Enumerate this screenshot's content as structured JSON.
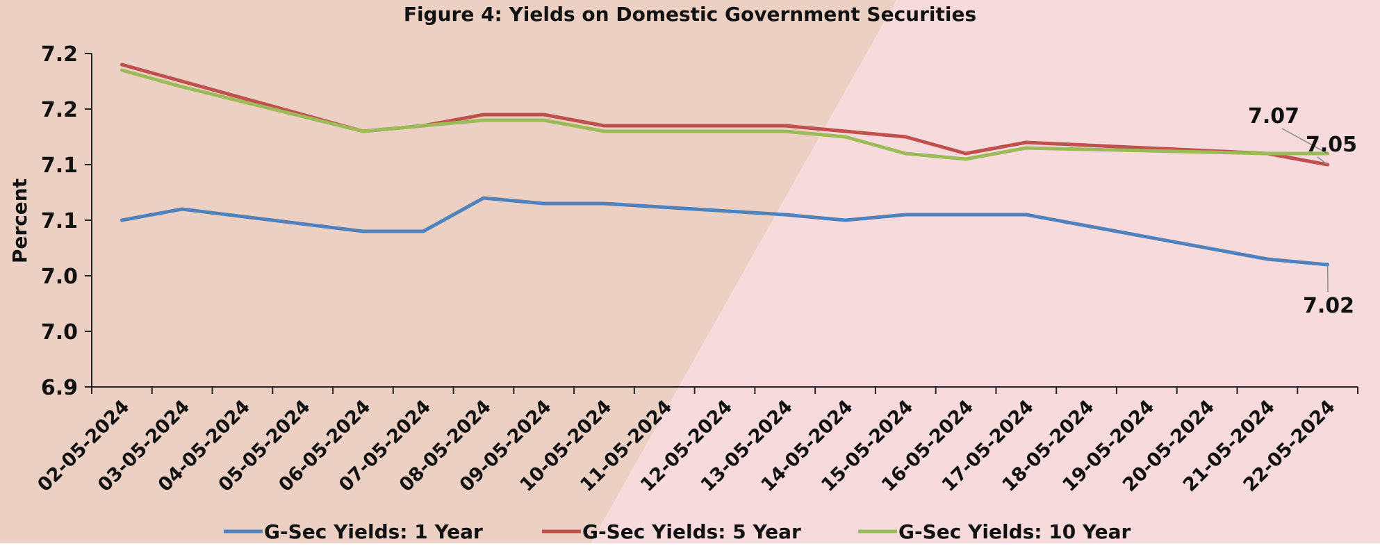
{
  "chart_data": {
    "type": "line",
    "title": "Figure 4: Yields on Domestic Government Securities",
    "xlabel": "",
    "ylabel": "Percent",
    "y_tick_labels": [
      "6.9",
      "7.0",
      "7.0",
      "7.1",
      "7.1",
      "7.2",
      "7.2"
    ],
    "ylim": [
      6.95,
      7.25
    ],
    "x": [
      "02-05-2024",
      "03-05-2024",
      "04-05-2024",
      "05-05-2024",
      "06-05-2024",
      "07-05-2024",
      "08-05-2024",
      "09-05-2024",
      "10-05-2024",
      "11-05-2024",
      "12-05-2024",
      "13-05-2024",
      "14-05-2024",
      "15-05-2024",
      "16-05-2024",
      "17-05-2024",
      "18-05-2024",
      "19-05-2024",
      "20-05-2024",
      "21-05-2024",
      "22-05-2024"
    ],
    "series": [
      {
        "name": "G-Sec Yields: 1 Year",
        "color": "#4f81bd",
        "values": [
          7.1,
          7.11,
          null,
          null,
          7.09,
          7.09,
          7.12,
          7.115,
          7.115,
          null,
          null,
          7.105,
          7.1,
          7.105,
          7.105,
          7.105,
          null,
          null,
          null,
          7.065,
          7.06
        ]
      },
      {
        "name": "G-Sec Yields: 5 Year",
        "color": "#c0504d",
        "values": [
          7.24,
          7.225,
          null,
          null,
          7.18,
          7.185,
          7.195,
          7.195,
          7.185,
          null,
          null,
          7.185,
          7.18,
          7.175,
          7.16,
          7.17,
          null,
          null,
          null,
          7.16,
          7.15
        ]
      },
      {
        "name": "G-Sec Yields: 10 Year",
        "color": "#9bbb59",
        "values": [
          7.235,
          7.22,
          null,
          null,
          7.18,
          7.185,
          7.19,
          7.19,
          7.18,
          null,
          null,
          7.18,
          7.175,
          7.16,
          7.155,
          7.165,
          null,
          null,
          null,
          7.16,
          7.16
        ]
      }
    ],
    "annotations": [
      {
        "text": "7.07",
        "series": "G-Sec Yields: 10 Year"
      },
      {
        "text": "7.05",
        "series": "G-Sec Yields: 5 Year"
      },
      {
        "text": "7.02",
        "series": "G-Sec Yields: 1 Year"
      }
    ],
    "legend": "bottom",
    "grid": false
  }
}
